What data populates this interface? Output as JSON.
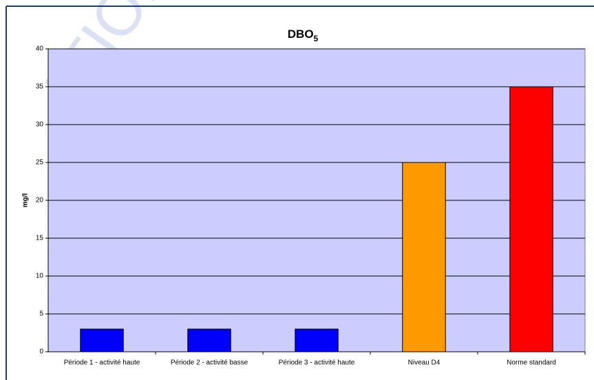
{
  "chart_data": {
    "type": "bar",
    "title": "DBO",
    "title_subscript": "5",
    "watermark": "ATION",
    "y_label": "mg/l",
    "categories": [
      "Période 1 - activité haute",
      "Période 2 - activité basse",
      "Période 3 - activité haute",
      "Niveau D4",
      "Norme standard"
    ],
    "values": [
      3,
      3,
      3,
      25,
      35
    ],
    "colors": [
      "#0000ff",
      "#0000ff",
      "#0000ff",
      "#ff9900",
      "#ff0000"
    ],
    "ylim": [
      0,
      40
    ],
    "yticks": [
      0,
      5,
      10,
      15,
      20,
      25,
      30,
      35,
      40
    ],
    "grid": true
  }
}
